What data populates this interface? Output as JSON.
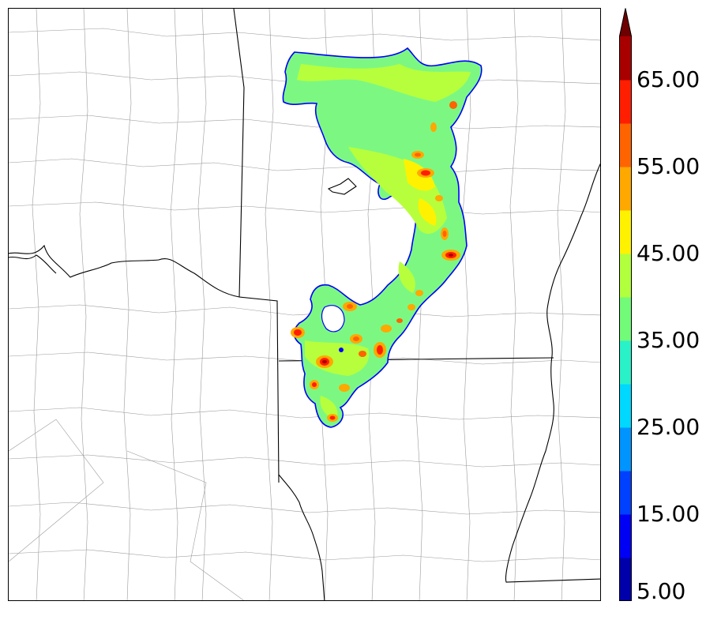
{
  "colorbar": {
    "levels": [
      5,
      10,
      15,
      20,
      25,
      30,
      35,
      40,
      45,
      50,
      55,
      60,
      65,
      70
    ],
    "colors": [
      "#0000aa",
      "#0000f5",
      "#0040ff",
      "#0094ff",
      "#00d8ff",
      "#2af2c8",
      "#72fb78",
      "#b2ff3e",
      "#fff200",
      "#ffa800",
      "#ff6400",
      "#ff1e00",
      "#a80000",
      "#6e0000"
    ],
    "tick_labels": [
      "5.00",
      "15.00",
      "25.00",
      "35.00",
      "45.00",
      "55.00",
      "65.00"
    ],
    "extend": "max"
  },
  "map": {
    "state_line_color": "#000000",
    "county_line_color": "#9a9a9a",
    "region_outline_color": "#0000ff"
  }
}
